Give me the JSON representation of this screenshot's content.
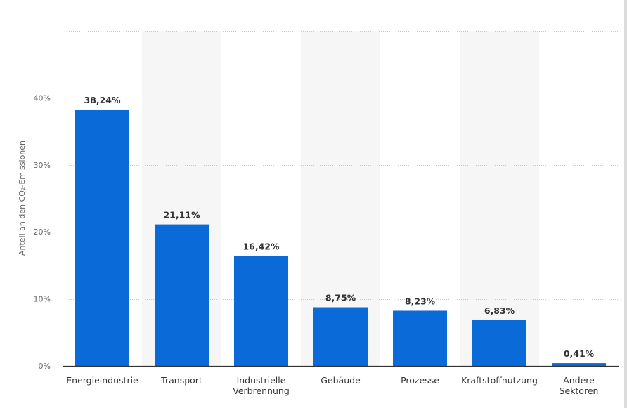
{
  "chart_data": {
    "type": "bar",
    "title": "",
    "xlabel": "",
    "ylabel": "Anteil an den CO₂-Emissionen",
    "ylim": [
      0,
      50
    ],
    "yticks": [
      0,
      10,
      20,
      30,
      40
    ],
    "ytick_labels": [
      "0%",
      "10%",
      "20%",
      "30%",
      "40%"
    ],
    "grid": true,
    "legend": "none",
    "bar_color": "#0a6ad8",
    "categories": [
      [
        "Energieindustrie"
      ],
      [
        "Transport"
      ],
      [
        "Industrielle",
        "Verbrennung"
      ],
      [
        "Gebäude"
      ],
      [
        "Prozesse"
      ],
      [
        "Kraftstoffnutzung"
      ],
      [
        "Andere",
        "Sektoren"
      ]
    ],
    "values": [
      38.24,
      21.11,
      16.42,
      8.75,
      8.23,
      6.83,
      0.41
    ],
    "value_labels": [
      "38,24%",
      "21,11%",
      "16,42%",
      "8,75%",
      "8,23%",
      "6,83%",
      "0,41%"
    ]
  }
}
